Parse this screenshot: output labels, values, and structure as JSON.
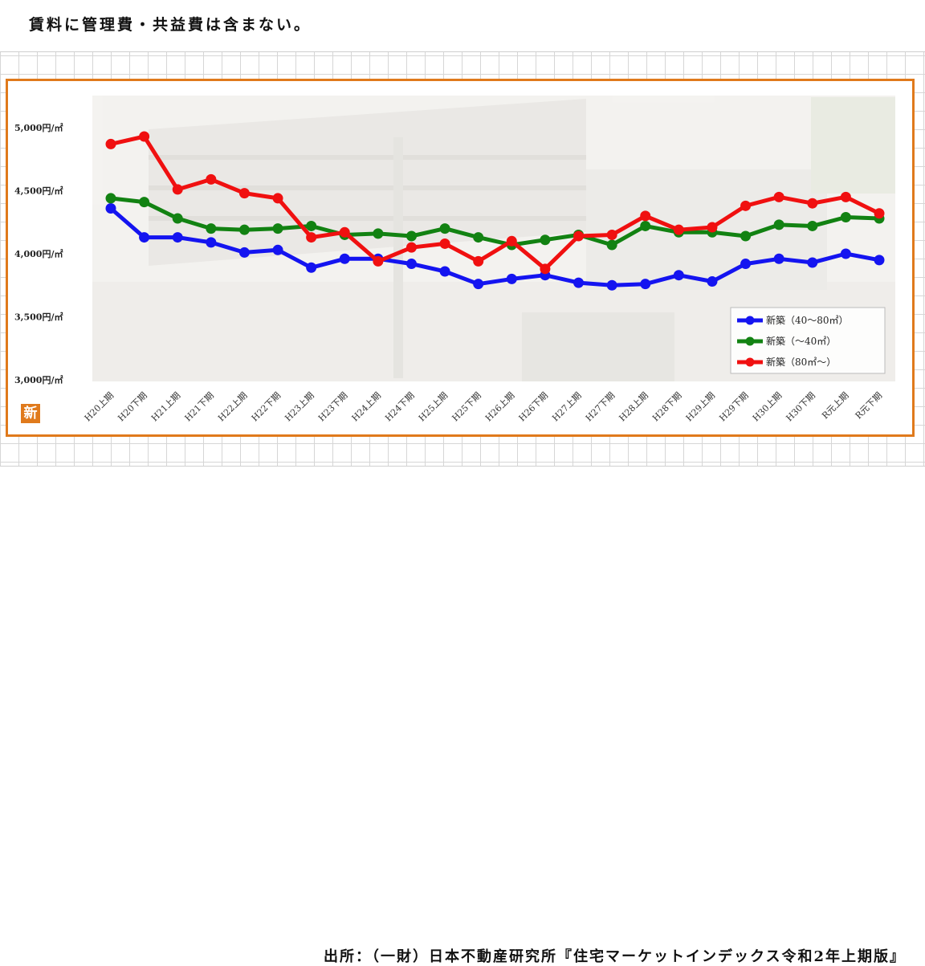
{
  "note": "賃料に管理費・共益費は含まない。",
  "source": "出所：（一財）日本不動産研究所『住宅マーケットインデックス令和2年上期版』",
  "badge": "新",
  "background_photo": "apartment-building",
  "chart_data": {
    "type": "line",
    "title": "",
    "xlabel": "",
    "ylabel": "",
    "categories": [
      "H20上期",
      "H20下期",
      "H21上期",
      "H21下期",
      "H22上期",
      "H22下期",
      "H23上期",
      "H23下期",
      "H24上期",
      "H24下期",
      "H25上期",
      "H25下期",
      "H26上期",
      "H26下期",
      "H27上期",
      "H27下期",
      "H28上期",
      "H28下期",
      "H29上期",
      "H29下期",
      "H30上期",
      "H30下期",
      "R元上期",
      "R元下期"
    ],
    "ylim": [
      3000,
      5000
    ],
    "yticks": [
      3000,
      3500,
      4000,
      4500,
      5000
    ],
    "ytick_labels": [
      "3,000円/㎡",
      "3,500円/㎡",
      "4,000円/㎡",
      "4,500円/㎡",
      "5,000円/㎡"
    ],
    "grid": false,
    "legend_position": "bottom-right",
    "series": [
      {
        "name": "新築（40～80㎡）",
        "color": "#1414f0",
        "values": [
          4360,
          4130,
          4130,
          4090,
          4010,
          4030,
          3890,
          3960,
          3960,
          3920,
          3860,
          3760,
          3800,
          3830,
          3770,
          3750,
          3760,
          3830,
          3780,
          3920,
          3960,
          3930,
          4000,
          3950
        ]
      },
      {
        "name": "新築（～40㎡）",
        "color": "#128212",
        "values": [
          4440,
          4410,
          4280,
          4200,
          4190,
          4200,
          4220,
          4150,
          4160,
          4140,
          4200,
          4130,
          4070,
          4110,
          4150,
          4070,
          4220,
          4170,
          4170,
          4140,
          4230,
          4220,
          4290,
          4280
        ]
      },
      {
        "name": "新築（80㎡～）",
        "color": "#f01010",
        "values": [
          4870,
          4930,
          4510,
          4590,
          4480,
          4440,
          4130,
          4170,
          3940,
          4050,
          4080,
          3940,
          4100,
          3880,
          4140,
          4150,
          4300,
          4190,
          4210,
          4380,
          4450,
          4400,
          4450,
          4320
        ]
      }
    ]
  }
}
